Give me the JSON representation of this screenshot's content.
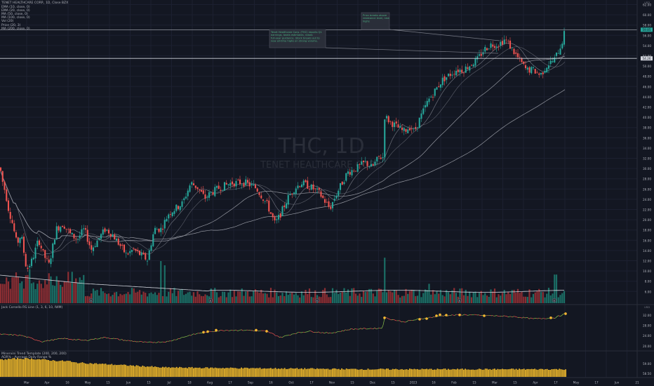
{
  "header": {
    "title": "TENET HEALTHCARE CORP., 1D, Close BZX",
    "indicators": [
      "EMA (10, close, 0)",
      "EMA (20, close, 0)",
      "MA (50, close, 0)",
      "MA (100, close, 0)",
      "Vol (20)",
      "Price (20, 3)",
      "MA (200, close, 0)"
    ]
  },
  "watermark": {
    "symbol": "THC, 1D",
    "name": "TENET HEALTHCARE CORP."
  },
  "panes": {
    "rs_title": "Jack Corsello RS Line (1, 3, 6, 10, IWM)",
    "mm_title1": "Minervini Trend Template (200, 200, 200)",
    "mm_title2": "ADR% - Average Daily Range %",
    "currency": "USD"
  },
  "x_axis": [
    "Mar",
    "Apr",
    "16",
    "May",
    "15",
    "Jun",
    "15",
    "Jul",
    "18",
    "Aug",
    "17",
    "Sep",
    "16",
    "Oct",
    "17",
    "Nov",
    "15",
    "Dec",
    "15",
    "2023",
    "16",
    "Feb",
    "15",
    "Mar",
    "15",
    "Apr",
    "17",
    "May",
    "17",
    "Jun",
    "21"
  ],
  "y_axis_price": [
    "62.00",
    "60.00",
    "58.00",
    "56.00",
    "54.00",
    "52.00",
    "50.00",
    "48.00",
    "46.00",
    "44.00",
    "42.00",
    "40.00",
    "38.00",
    "36.00",
    "34.00",
    "32.00",
    "30.00",
    "28.00",
    "26.00",
    "24.00",
    "22.00",
    "20.00",
    "18.00",
    "16.00",
    "14.00",
    "12.00",
    "10.00",
    "8.00",
    "6.00"
  ],
  "y_axis_rs": [
    "32.00",
    "28.00",
    "24.00",
    "20.00"
  ],
  "y_axis_mm": [
    "59.00",
    "58.50"
  ],
  "price_labels": {
    "last": "59.85",
    "level": "54.26"
  },
  "annotations": [
    {
      "text": "Tenet Healthcare Corp. (THC) reports Q1 earnings, beats estimates, raises full-year guidance. Stock breaks out to new all-time highs on strong volume."
    },
    {
      "text": "Price breaks above resistance level, new highs"
    }
  ],
  "events": [
    "E",
    "E",
    "E",
    "E",
    "E"
  ],
  "colors": {
    "up": "#26a69a",
    "down": "#ef5350",
    "volUp": "#1b6e65",
    "volDown": "#8c2e33",
    "ema10": "#787b86",
    "ema20": "#5d606b",
    "ma50": "#9598a1",
    "ma200": "#9598a1",
    "volma": "#d1d4dc",
    "rsMarker": "#f7b733",
    "mmBar": "#e6b22a"
  },
  "chart_data": {
    "type": "candlestick",
    "title": "TENET HEALTHCARE CORP., 1D, Close BZX",
    "ylim": [
      6,
      64
    ],
    "keypoints": [
      [
        0,
        33
      ],
      [
        4,
        30
      ],
      [
        8,
        28
      ],
      [
        12,
        25
      ],
      [
        18,
        22
      ],
      [
        24,
        18
      ],
      [
        30,
        20
      ],
      [
        38,
        13
      ],
      [
        46,
        15
      ],
      [
        55,
        19
      ],
      [
        62,
        16
      ],
      [
        70,
        14
      ],
      [
        80,
        21
      ],
      [
        90,
        22
      ],
      [
        100,
        20
      ],
      [
        110,
        19
      ],
      [
        120,
        21
      ],
      [
        130,
        17
      ],
      [
        140,
        19
      ],
      [
        150,
        21
      ],
      [
        160,
        20
      ],
      [
        170,
        18
      ],
      [
        180,
        16
      ],
      [
        190,
        17
      ],
      [
        200,
        16
      ],
      [
        210,
        15
      ],
      [
        220,
        21
      ],
      [
        230,
        21
      ],
      [
        240,
        24
      ],
      [
        260,
        26
      ],
      [
        272,
        30
      ],
      [
        282,
        29
      ],
      [
        292,
        27
      ],
      [
        300,
        28
      ],
      [
        312,
        29
      ],
      [
        330,
        30
      ],
      [
        350,
        30
      ],
      [
        365,
        29
      ],
      [
        380,
        26
      ],
      [
        392,
        22
      ],
      [
        400,
        24
      ],
      [
        410,
        27
      ],
      [
        420,
        29
      ],
      [
        430,
        30
      ],
      [
        445,
        29
      ],
      [
        455,
        28
      ],
      [
        470,
        25
      ],
      [
        480,
        28
      ],
      [
        495,
        32
      ],
      [
        510,
        33
      ],
      [
        520,
        34
      ],
      [
        530,
        33
      ],
      [
        540,
        35
      ],
      [
        546,
        35
      ],
      [
        548,
        43
      ],
      [
        555,
        42
      ],
      [
        565,
        41
      ],
      [
        575,
        40
      ],
      [
        585,
        41
      ],
      [
        590,
        40
      ],
      [
        600,
        43
      ],
      [
        610,
        46
      ],
      [
        620,
        48
      ],
      [
        630,
        50
      ],
      [
        640,
        51
      ],
      [
        650,
        52
      ],
      [
        660,
        52
      ],
      [
        670,
        53
      ],
      [
        680,
        54
      ],
      [
        690,
        56
      ],
      [
        700,
        57
      ],
      [
        710,
        57
      ],
      [
        720,
        58
      ],
      [
        730,
        56
      ],
      [
        740,
        54
      ],
      [
        750,
        52
      ],
      [
        760,
        52
      ],
      [
        770,
        51
      ],
      [
        780,
        53
      ],
      [
        790,
        54
      ],
      [
        800,
        57
      ],
      [
        806,
        60
      ]
    ],
    "rs_keypoints": [
      [
        0,
        24
      ],
      [
        30,
        23.5
      ],
      [
        60,
        20.5
      ],
      [
        90,
        22
      ],
      [
        120,
        21
      ],
      [
        150,
        22.5
      ],
      [
        180,
        21
      ],
      [
        210,
        20
      ],
      [
        240,
        20.5
      ],
      [
        270,
        23.5
      ],
      [
        290,
        25
      ],
      [
        320,
        26
      ],
      [
        350,
        26
      ],
      [
        380,
        25.5
      ],
      [
        400,
        22.5
      ],
      [
        420,
        24.5
      ],
      [
        440,
        25.5
      ],
      [
        470,
        24.5
      ],
      [
        500,
        26.5
      ],
      [
        545,
        27
      ],
      [
        548,
        32
      ],
      [
        575,
        30
      ],
      [
        600,
        31.5
      ],
      [
        630,
        33
      ],
      [
        660,
        33.5
      ],
      [
        700,
        33
      ],
      [
        735,
        32.5
      ],
      [
        760,
        31.5
      ],
      [
        790,
        32
      ],
      [
        806,
        34
      ]
    ],
    "rs_markers": [
      [
        290,
        25
      ],
      [
        296,
        25.3
      ],
      [
        308,
        26
      ],
      [
        365,
        26
      ],
      [
        380,
        25.5
      ],
      [
        548,
        32
      ],
      [
        598,
        31.3
      ],
      [
        608,
        31.6
      ],
      [
        622,
        33
      ],
      [
        627,
        33.5
      ],
      [
        636,
        33.3
      ],
      [
        655,
        33.4
      ],
      [
        690,
        33
      ],
      [
        785,
        32
      ],
      [
        806,
        34
      ]
    ],
    "volume_ma_level": [
      1.35,
      1.2,
      0.8,
      0.7,
      0.65,
      0.6
    ],
    "volume_spikes": [
      [
        42,
        4
      ],
      [
        80,
        3.2
      ],
      [
        230,
        5
      ],
      [
        235,
        4.5
      ],
      [
        548,
        5.4
      ],
      [
        612,
        2.3
      ],
      [
        792,
        3.4
      ]
    ]
  }
}
